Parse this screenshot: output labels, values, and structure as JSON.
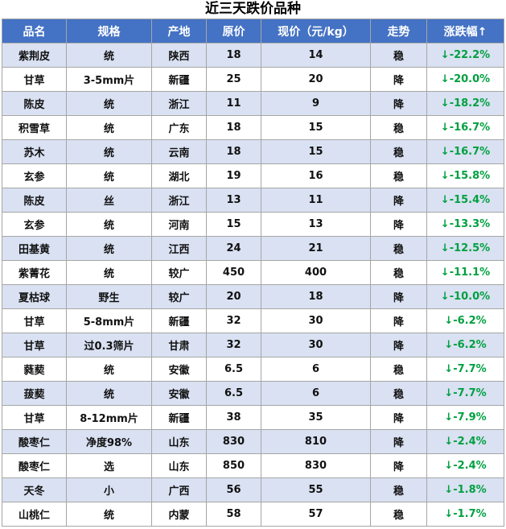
{
  "title": "近三天跌价品种",
  "headers": [
    "品名",
    "规格",
    "产地",
    "原价",
    "现价（元/kg）",
    "走势",
    "涨跌幅↑"
  ],
  "rows": [
    [
      "紫荆皮",
      "统",
      "陕西",
      "18",
      "14",
      "稳",
      "↓-22.2%"
    ],
    [
      "甘草",
      "3-5mm片",
      "新疆",
      "25",
      "20",
      "降",
      "↓-20.0%"
    ],
    [
      "陈皮",
      "统",
      "浙江",
      "11",
      "9",
      "降",
      "↓-18.2%"
    ],
    [
      "积雪草",
      "统",
      "广东",
      "18",
      "15",
      "稳",
      "↓-16.7%"
    ],
    [
      "苏木",
      "统",
      "云南",
      "18",
      "15",
      "稳",
      "↓-16.7%"
    ],
    [
      "玄参",
      "统",
      "湖北",
      "19",
      "16",
      "稳",
      "↓-15.8%"
    ],
    [
      "陈皮",
      "丝",
      "浙江",
      "13",
      "11",
      "降",
      "↓-15.4%"
    ],
    [
      "玄参",
      "统",
      "河南",
      "15",
      "13",
      "降",
      "↓-13.3%"
    ],
    [
      "田基黄",
      "统",
      "江西",
      "24",
      "21",
      "稳",
      "↓-12.5%"
    ],
    [
      "紫菁花",
      "统",
      "较广",
      "450",
      "400",
      "稳",
      "↓-11.1%"
    ],
    [
      "夏枯球",
      "野生",
      "较广",
      "20",
      "18",
      "降",
      "↓-10.0%"
    ],
    [
      "甘草",
      "5-8mm片",
      "新疆",
      "32",
      "30",
      "降",
      "↓-6.2%"
    ],
    [
      "甘草",
      "过0.3筛片",
      "甘肃",
      "32",
      "30",
      "降",
      "↓-6.2%"
    ],
    [
      "蕤葜",
      "统",
      "安徽",
      "6.5",
      "6",
      "稳",
      "↓-7.7%"
    ],
    [
      "菝葜",
      "统",
      "安徽",
      "6.5",
      "6",
      "稳",
      "↓-7.7%"
    ],
    [
      "甘草",
      "8-12mm片",
      "新疆",
      "38",
      "35",
      "降",
      "↓-7.9%"
    ],
    [
      "酸枣仁",
      "净度98%",
      "山东",
      "830",
      "810",
      "降",
      "↓-2.4%"
    ],
    [
      "酸枣仁",
      "选",
      "山东",
      "850",
      "830",
      "降",
      "↓-2.4%"
    ],
    [
      "天冬",
      "小",
      "广西",
      "56",
      "55",
      "稳",
      "↓-1.8%"
    ],
    [
      "山桃仁",
      "统",
      "内蒙",
      "58",
      "57",
      "稳",
      "↓-1.7%"
    ]
  ],
  "colors": {
    "header_bg": "#4472c4",
    "band_bg": "#d9e1f2",
    "change_text": "#00a040"
  }
}
